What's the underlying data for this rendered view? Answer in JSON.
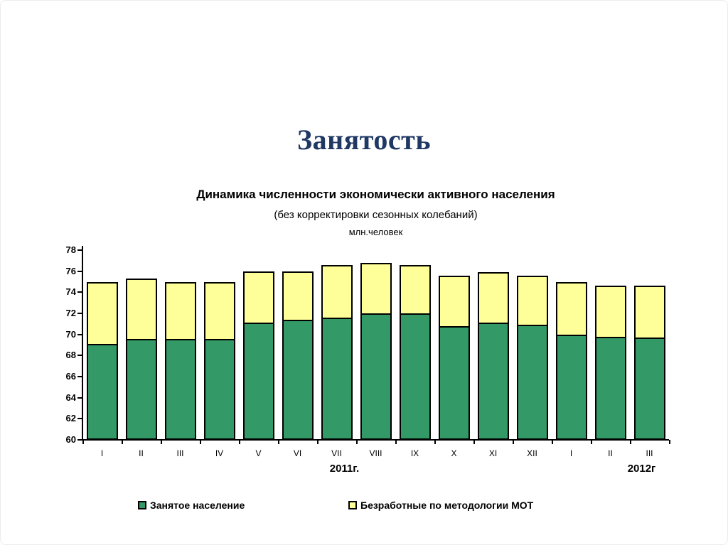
{
  "page": {
    "title": "Занятость",
    "title_color": "#1F3864"
  },
  "chart_data": {
    "type": "bar",
    "stacked": true,
    "title": "Динамика численности экономически активного населения",
    "subtitle": "(без корректировки сезонных колебаний)",
    "units_label": "млн.человек",
    "categories": [
      "I",
      "II",
      "III",
      "IV",
      "V",
      "VI",
      "VII",
      "VIII",
      "IX",
      "X",
      "XI",
      "XII",
      "I",
      "II",
      "III"
    ],
    "year_groups": [
      {
        "label": "2011г.",
        "span": [
          0,
          11
        ]
      },
      {
        "label": "2012г",
        "span": [
          12,
          14
        ]
      }
    ],
    "series": [
      {
        "name": "Занятое население",
        "color": "#339966",
        "values": [
          69.1,
          69.6,
          69.6,
          69.6,
          71.1,
          71.4,
          71.6,
          72.0,
          72.0,
          70.8,
          71.1,
          70.9,
          70.0,
          69.8,
          69.7
        ]
      },
      {
        "name": "Безработные по методологии МОТ",
        "color": "#FFFF99",
        "values": [
          5.9,
          5.7,
          5.4,
          5.4,
          4.9,
          4.6,
          5.0,
          4.8,
          4.6,
          4.8,
          4.8,
          4.7,
          5.0,
          4.8,
          4.9
        ]
      }
    ],
    "ylim": [
      60,
      78
    ],
    "ytick_step": 2,
    "legend_position": "bottom",
    "grid": false,
    "axis_color": "#000000",
    "bar_border_color": "#000000"
  }
}
